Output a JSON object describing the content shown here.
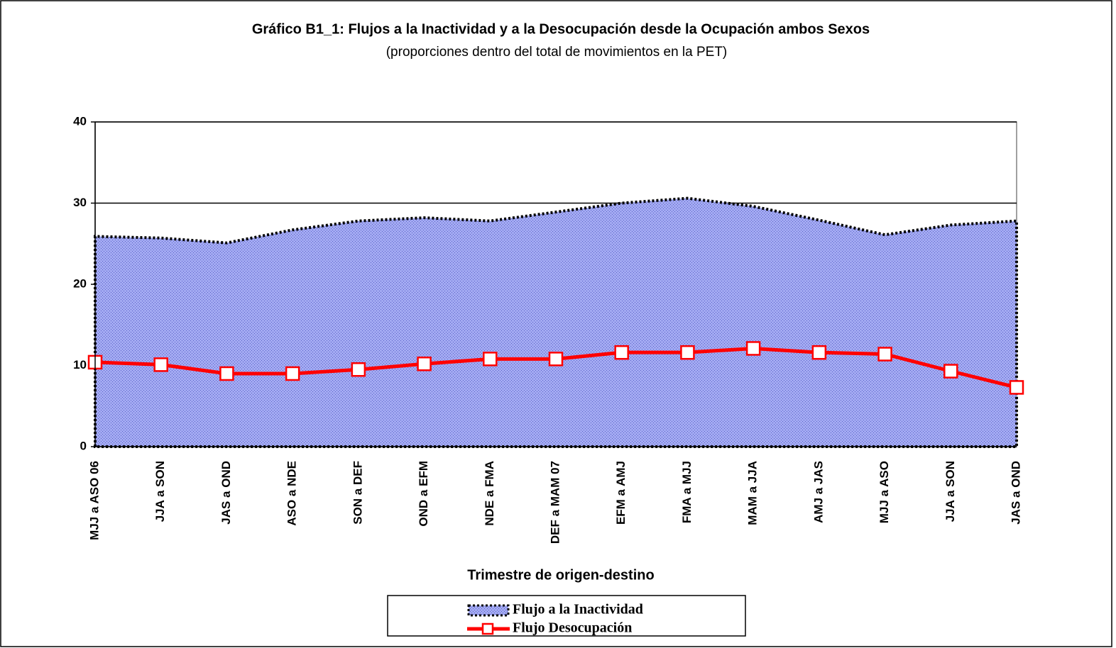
{
  "chart_data": {
    "type": "line",
    "title": "Gráfico B1_1: Flujos a la Inactividad y a la Desocupación desde la Ocupación ambos Sexos",
    "subtitle": "(proporciones dentro del total de movimientos en la PET)",
    "x_label": "Trimestre de origen-destino",
    "categories": [
      "MJJ a ASO 06",
      "JJA a SON",
      "JAS a OND",
      "ASO a NDE",
      "SON a DEF",
      "OND a EFM",
      "NDE a FMA",
      "DEF a MAM 07",
      "EFM a AMJ",
      "FMA a MJJ",
      "MAM a JJA",
      "AMJ a JAS",
      "MJJ a ASO",
      "JJA a SON",
      "JAS a OND"
    ],
    "series": [
      {
        "name": "Flujo a la Inactividad",
        "style": "area",
        "color": "#a3aaf2",
        "values": [
          25.9,
          25.7,
          25.1,
          26.7,
          27.8,
          28.2,
          27.8,
          28.9,
          30.0,
          30.6,
          29.6,
          27.9,
          26.1,
          27.3,
          27.8
        ]
      },
      {
        "name": "Flujo Desocupación",
        "style": "line",
        "color": "#ff0000",
        "values": [
          10.4,
          10.1,
          9.0,
          9.0,
          9.5,
          10.2,
          10.8,
          10.8,
          11.6,
          11.6,
          12.1,
          11.6,
          11.4,
          9.3,
          7.3
        ]
      }
    ],
    "ylim": [
      0,
      40
    ],
    "yticks": [
      0,
      10,
      20,
      30,
      40
    ],
    "grid": true,
    "legend": "bottom"
  }
}
